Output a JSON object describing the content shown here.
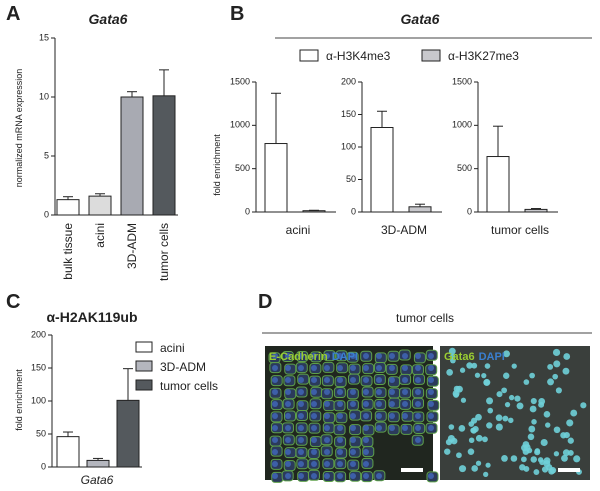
{
  "chart_data": [
    {
      "type": "bar",
      "panel_label": "A",
      "title": "Gata6",
      "y_label": "normalized mRNA expression",
      "categories": [
        "bulk tissue",
        "acini",
        "3D-ADM",
        "tumor cells"
      ],
      "values": [
        1.3,
        1.6,
        10.0,
        10.1
      ],
      "errors": [
        0.25,
        0.2,
        0.45,
        2.2
      ],
      "colors": [
        "#ffffff",
        "#dcdcdc",
        "#a8aab2",
        "#54595d"
      ],
      "ylim": [
        0,
        15
      ],
      "yticks": [
        0,
        5,
        10,
        15
      ]
    },
    {
      "type": "bar-panels",
      "panel_label": "B",
      "title": "Gata6",
      "y_label": "fold enrichment",
      "categories": [
        "acini",
        "3D-ADM",
        "tumor cells"
      ],
      "series": [
        {
          "name": "α-H3K4me3",
          "color": "#ffffff",
          "values": [
            790,
            130,
            640
          ],
          "errors": [
            580,
            25,
            350
          ]
        },
        {
          "name": "α-H3K27me3",
          "color": "#c8c8cc",
          "values": [
            15,
            8,
            30
          ],
          "errors": [
            5,
            4,
            10
          ]
        }
      ],
      "ylims": [
        [
          0,
          1500
        ],
        [
          0,
          200
        ],
        [
          0,
          1500
        ]
      ],
      "yticks": [
        [
          0,
          500,
          1000,
          1500
        ],
        [
          0,
          50,
          100,
          150,
          200
        ],
        [
          0,
          500,
          1000,
          1500
        ]
      ]
    },
    {
      "type": "grouped-bar",
      "panel_label": "C",
      "title": "α-H2AK119ub",
      "y_label": "fold enrichment",
      "categories": [
        "Gata6"
      ],
      "series": [
        {
          "name": "acini",
          "color": "#ffffff",
          "values": [
            46
          ],
          "errors": [
            7
          ]
        },
        {
          "name": "3D-ADM",
          "color": "#b4b6be",
          "values": [
            10
          ],
          "errors": [
            3
          ]
        },
        {
          "name": "tumor cells",
          "color": "#54595d",
          "values": [
            101
          ],
          "errors": [
            48
          ]
        }
      ],
      "ylim": [
        0,
        200
      ],
      "yticks": [
        0,
        50,
        100,
        150,
        200
      ]
    }
  ],
  "image_panel": {
    "panel_label": "D",
    "title": "tumor cells",
    "images": [
      {
        "labels": [
          {
            "text": "E-Cadherin",
            "color": "#9acd32"
          },
          {
            "text": "DAPI",
            "color": "#3a7fd0"
          }
        ]
      },
      {
        "labels": [
          {
            "text": "Gata6",
            "color": "#9acd32"
          },
          {
            "text": "DAPI",
            "color": "#3a7fd0"
          }
        ]
      }
    ]
  }
}
